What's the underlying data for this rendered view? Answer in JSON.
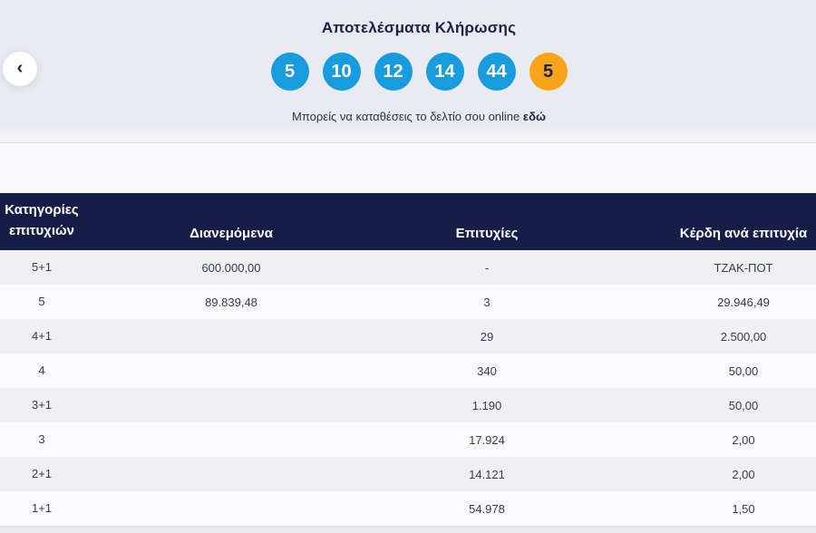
{
  "results": {
    "title": "Αποτελέσματα Κλήρωσης",
    "numbers": [
      "5",
      "10",
      "12",
      "14",
      "44"
    ],
    "bonus_number": "5",
    "submit_text": "Μπορείς να καταθέσεις το δελτίο σου online",
    "submit_link_label": "εδώ",
    "back_icon": "‹"
  },
  "table": {
    "headers": [
      "Κατηγορίες επιτυχιών",
      "Διανεμόμενα",
      "Επιτυχίες",
      "Κέρδη ανά επιτυχία"
    ],
    "rows": [
      {
        "category": "5+1",
        "distributed": "600.000,00",
        "winners": "-",
        "prize": "ΤΖΑΚ-ΠΟΤ"
      },
      {
        "category": "5",
        "distributed": "89.839,48",
        "winners": "3",
        "prize": "29.946,49"
      },
      {
        "category": "4+1",
        "distributed": "",
        "winners": "29",
        "prize": "2.500,00"
      },
      {
        "category": "4",
        "distributed": "",
        "winners": "340",
        "prize": "50,00"
      },
      {
        "category": "3+1",
        "distributed": "",
        "winners": "1.190",
        "prize": "50,00"
      },
      {
        "category": "3",
        "distributed": "",
        "winners": "17.924",
        "prize": "2,00"
      },
      {
        "category": "2+1",
        "distributed": "",
        "winners": "14.121",
        "prize": "2,00"
      },
      {
        "category": "1+1",
        "distributed": "",
        "winners": "54.978",
        "prize": "1,50"
      }
    ]
  },
  "colors": {
    "ball_blue": "#189CDE",
    "ball_bonus_yellow": "#F9A51B",
    "header_navy": "#161D46",
    "panel_background": "#E9EBF3"
  }
}
